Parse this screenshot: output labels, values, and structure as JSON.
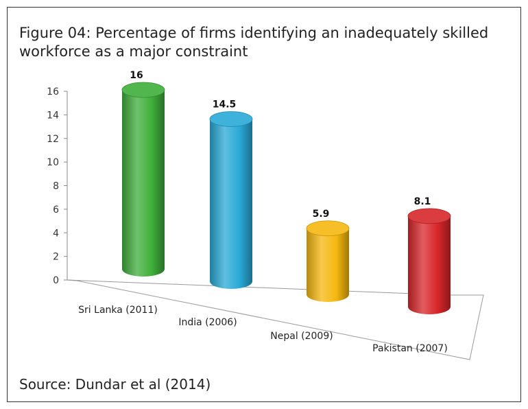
{
  "figure": {
    "title": "Figure 04: Percentage of firms identifying an inadequately skilled workforce as a major constraint",
    "source": "Source: Dundar et al (2014)"
  },
  "chart_data": {
    "type": "bar",
    "style": "3d-cylinder",
    "title": "",
    "xlabel": "",
    "ylabel": "",
    "ylim": [
      0,
      16
    ],
    "yticks": [
      0,
      2,
      4,
      6,
      8,
      10,
      12,
      14,
      16
    ],
    "categories": [
      "Sri Lanka (2011)",
      "India (2006)",
      "Nepal (2009)",
      "Pakistan (2007)"
    ],
    "values": [
      16,
      14.5,
      5.9,
      8.1
    ],
    "data_labels": [
      "16",
      "14.5",
      "5.9",
      "8.1"
    ],
    "colors": [
      "#3fae3a",
      "#29a9d6",
      "#f5b80f",
      "#d7262a"
    ],
    "grid": false,
    "legend": "none"
  }
}
